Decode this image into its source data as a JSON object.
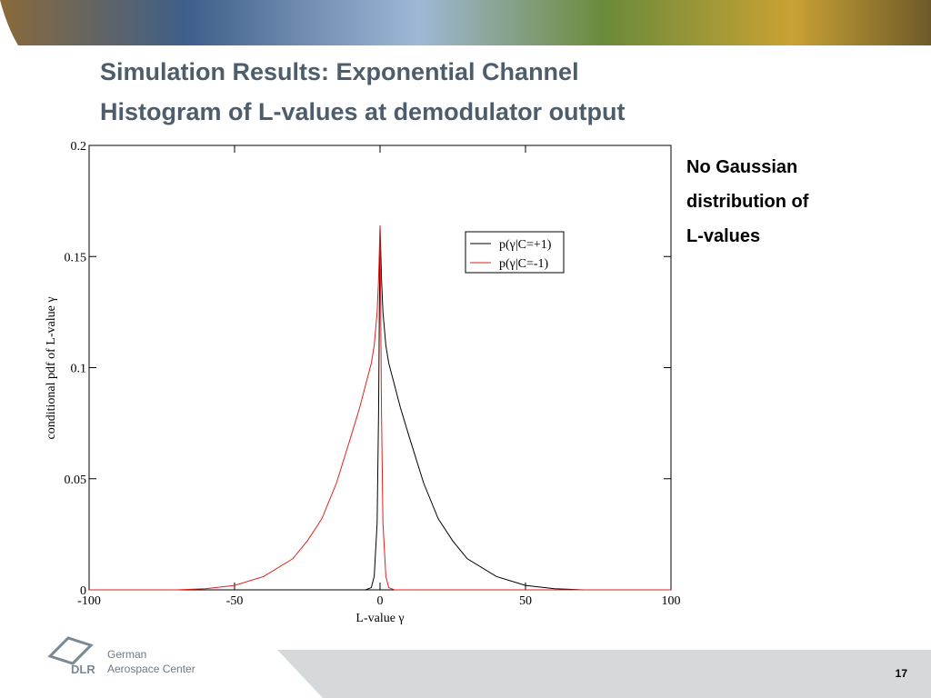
{
  "header": {
    "title_lines": [
      "Simulation Results: Exponential Channel",
      "Histogram of L-values at demodulator output"
    ]
  },
  "side_note": {
    "lines": [
      "No Gaussian",
      "distribution of",
      "L-values"
    ]
  },
  "footer": {
    "logo": "DLR",
    "org_lines": [
      "German",
      "Aerospace Center"
    ],
    "page": "17"
  },
  "chart_data": {
    "type": "line",
    "x_label": "L-value γ",
    "y_label": "conditional pdf of L-value γ",
    "x": [
      -100,
      -70,
      -60,
      -50,
      -40,
      -30,
      -25,
      -20,
      -15,
      -10,
      -7,
      -5,
      -3,
      -2,
      -1,
      -0.5,
      0,
      0.5,
      1,
      2,
      3,
      5,
      7,
      10,
      15,
      20,
      25,
      30,
      40,
      50,
      60,
      70,
      100
    ],
    "series": [
      {
        "name": "p(γ|C=+1)",
        "color": "#000000",
        "values": [
          0,
          0,
          0,
          0,
          0,
          0,
          0,
          0,
          0,
          0,
          0,
          0,
          0.001,
          0.006,
          0.03,
          0.08,
          0.164,
          0.14,
          0.125,
          0.11,
          0.102,
          0.092,
          0.082,
          0.069,
          0.048,
          0.032,
          0.022,
          0.014,
          0.006,
          0.002,
          0.0005,
          0,
          0
        ]
      },
      {
        "name": "p(γ|C=-1)",
        "color": "#e0201c",
        "values": [
          0,
          0,
          0.0005,
          0.002,
          0.006,
          0.014,
          0.022,
          0.032,
          0.048,
          0.069,
          0.082,
          0.092,
          0.102,
          0.11,
          0.125,
          0.14,
          0.164,
          0.08,
          0.03,
          0.006,
          0.001,
          0,
          0,
          0,
          0,
          0,
          0,
          0,
          0,
          0,
          0,
          0,
          0
        ]
      }
    ],
    "xlim": [
      -100,
      100
    ],
    "xticks": [
      -100,
      -50,
      0,
      50,
      100
    ],
    "ylim": [
      0,
      0.2
    ],
    "yticks": [
      0,
      0.05,
      0.1,
      0.15,
      0.2
    ],
    "legend": "upper-right"
  }
}
